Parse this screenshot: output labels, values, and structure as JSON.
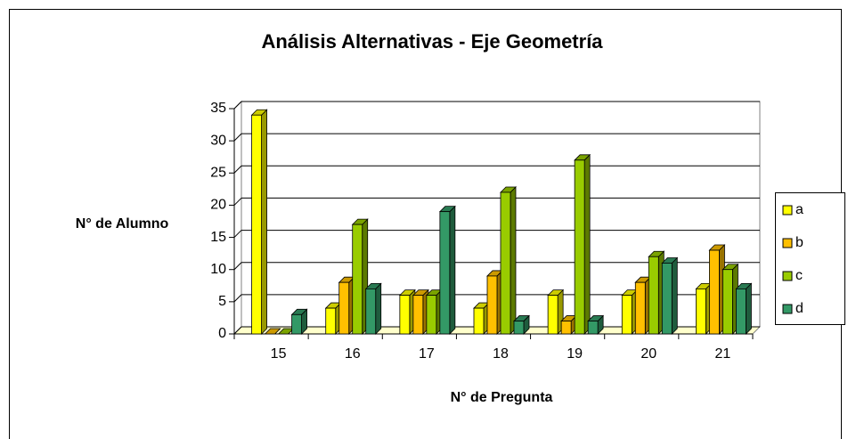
{
  "chart_data": {
    "type": "bar3d",
    "title": "Análisis Alternativas - Eje Geometría",
    "x_label": "N° de Pregunta",
    "y_label": "N° de Alumno",
    "categories": [
      "15",
      "16",
      "17",
      "18",
      "19",
      "20",
      "21"
    ],
    "series": [
      {
        "name": "a",
        "color": "#ffff00",
        "values": [
          34,
          4,
          6,
          4,
          6,
          6,
          7
        ]
      },
      {
        "name": "b",
        "color": "#ffc000",
        "values": [
          0,
          8,
          6,
          9,
          2,
          8,
          13
        ]
      },
      {
        "name": "c",
        "color": "#99cc00",
        "values": [
          0,
          17,
          6,
          22,
          27,
          12,
          10
        ]
      },
      {
        "name": "d",
        "color": "#339966",
        "values": [
          3,
          7,
          19,
          2,
          2,
          11,
          7
        ]
      }
    ],
    "ylim": [
      0,
      35
    ],
    "yticks": [
      0,
      5,
      10,
      15,
      20,
      25,
      30,
      35
    ],
    "grid": true,
    "legend": "right"
  }
}
